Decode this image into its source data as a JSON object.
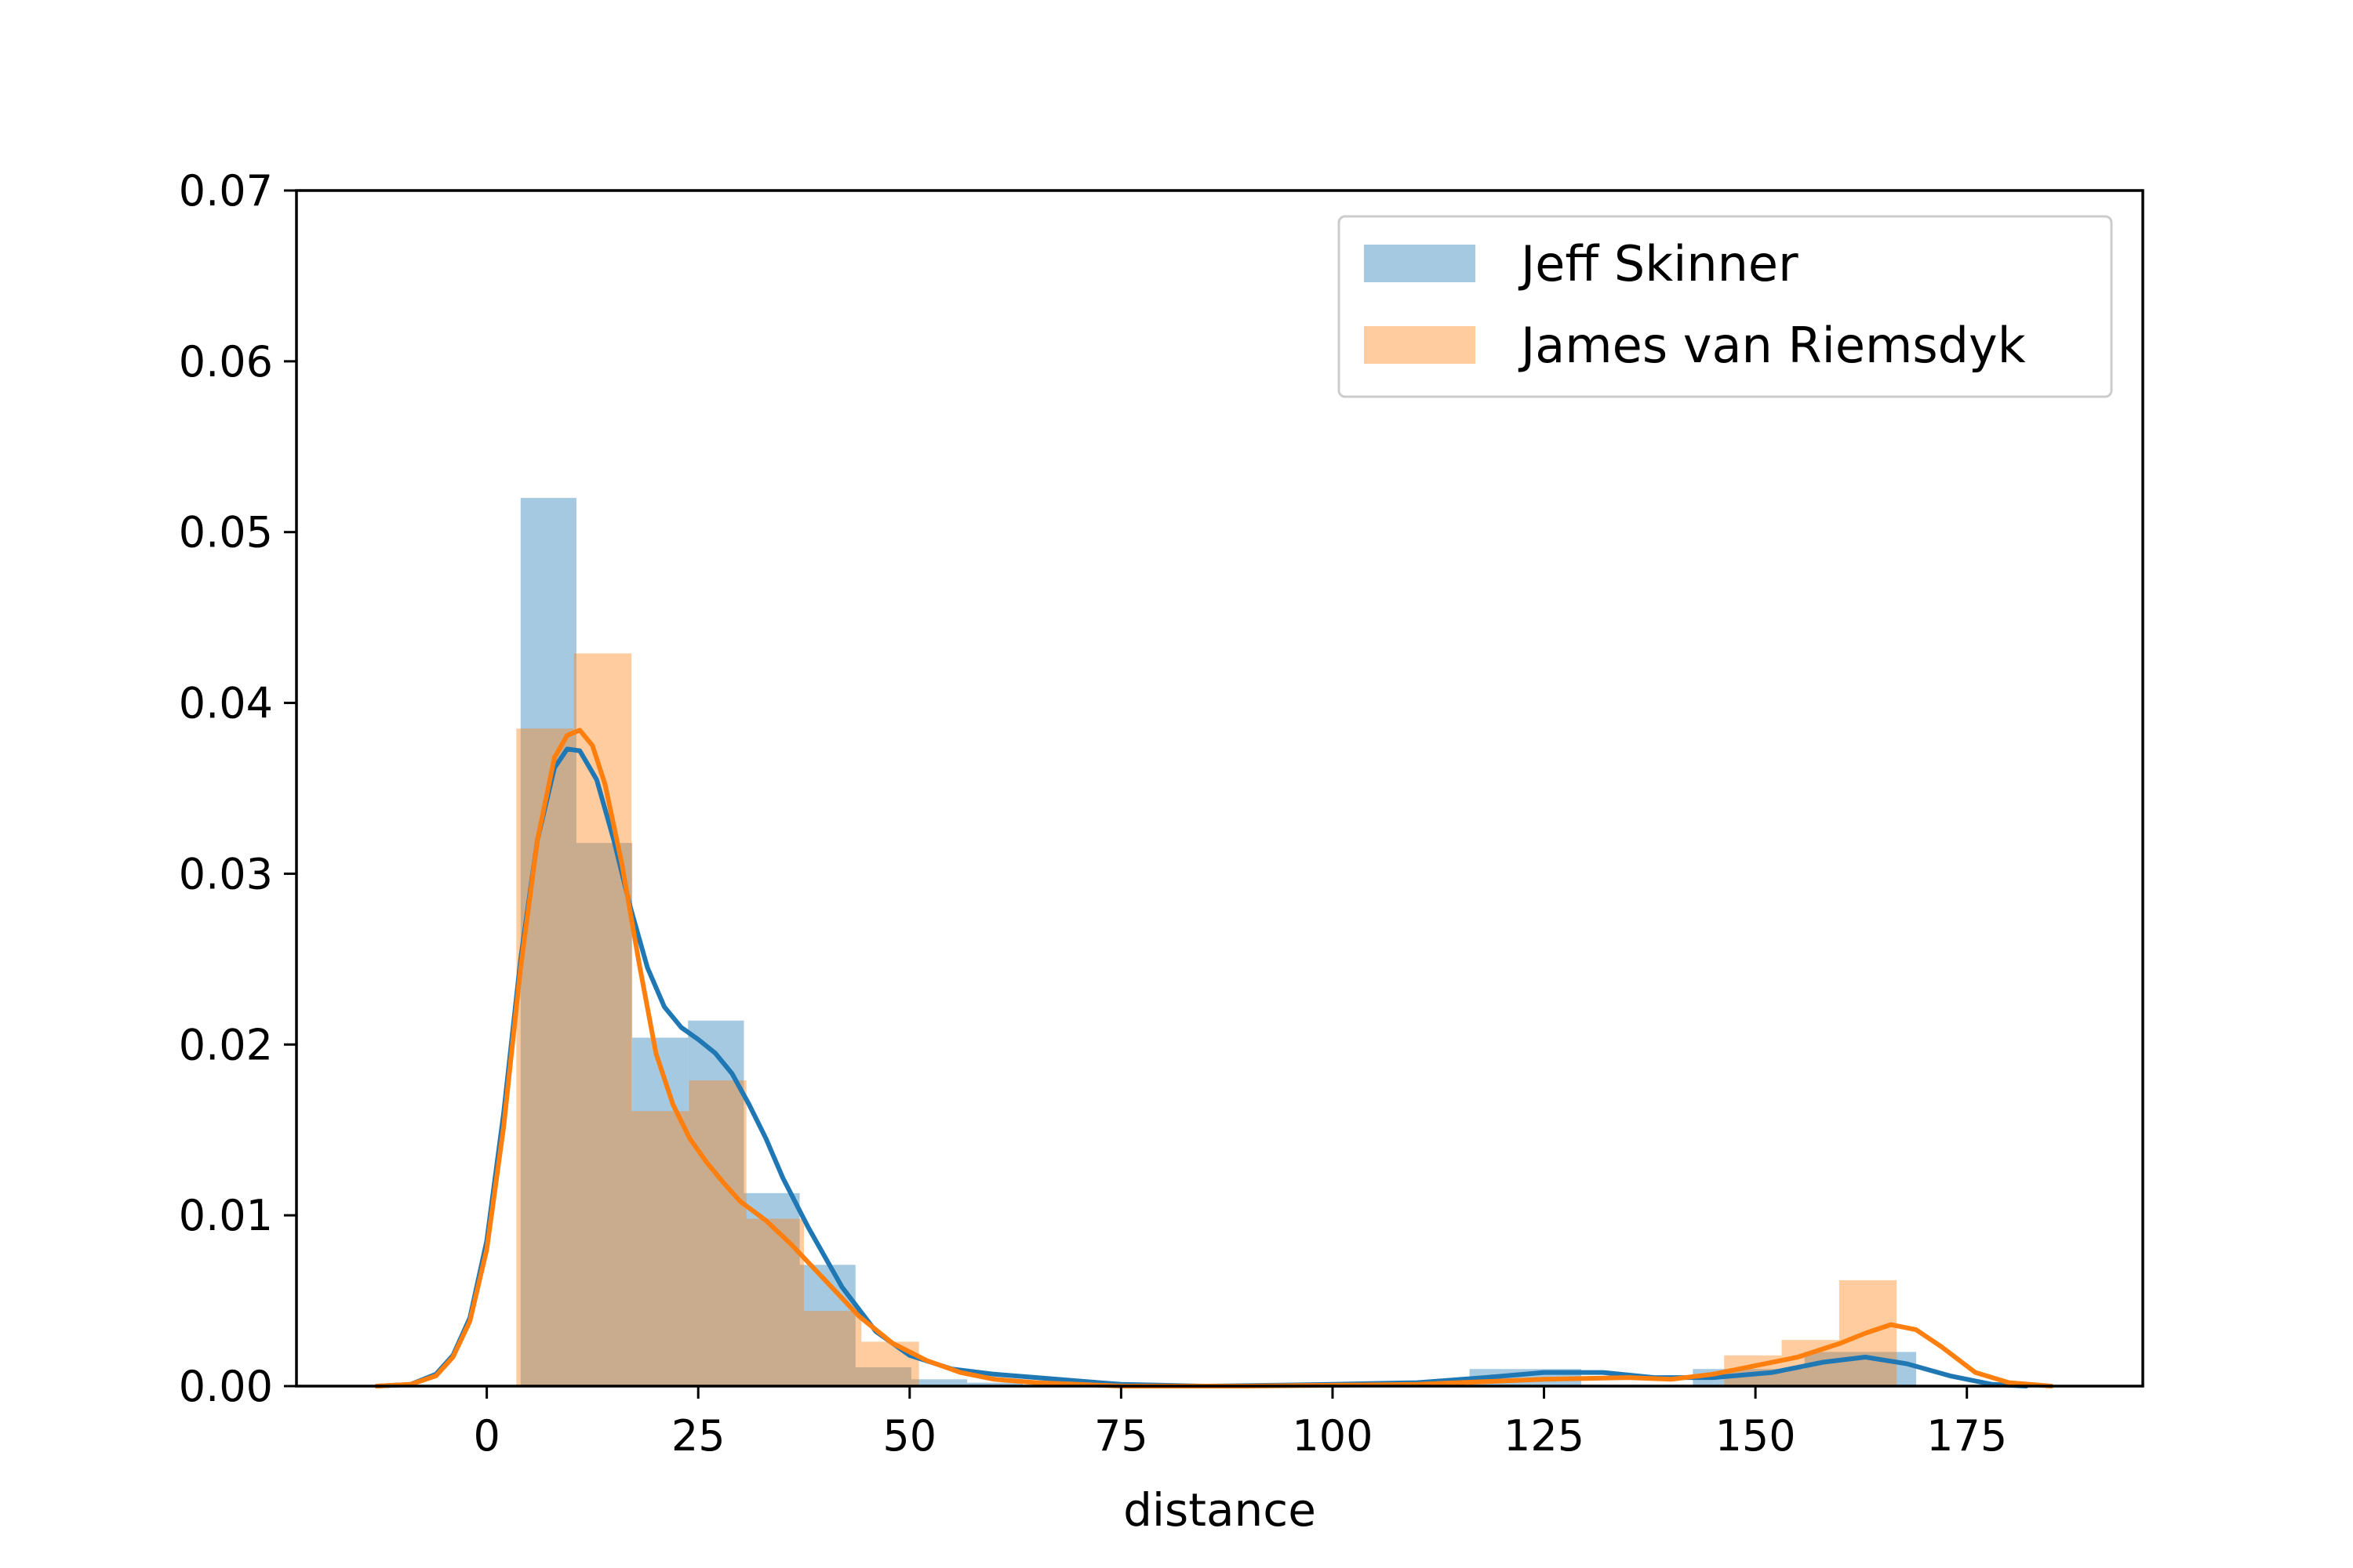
{
  "chart_data": {
    "type": "bar",
    "subtype": "histogram-with-kde",
    "title": "",
    "xlabel": "distance",
    "ylabel": "",
    "xlim": [
      -22.5,
      195.8
    ],
    "ylim": [
      0,
      0.07
    ],
    "xticks": [
      0,
      25,
      50,
      75,
      100,
      125,
      150,
      175
    ],
    "yticks": [
      0.0,
      0.01,
      0.02,
      0.03,
      0.04,
      0.05,
      0.06,
      0.07
    ],
    "ytick_labels": [
      "0.00",
      "0.01",
      "0.02",
      "0.03",
      "0.04",
      "0.05",
      "0.06",
      "0.07"
    ],
    "grid": false,
    "legend_position": "top-right",
    "series": [
      {
        "name": "Jeff Skinner",
        "color": "#1f77b4",
        "histogram": {
          "edges": [
            4.0,
            10.6,
            17.2,
            23.8,
            30.4,
            37.0,
            43.6,
            50.2,
            56.8,
            63.4,
            70.0,
            76.6,
            83.2,
            89.8,
            96.4,
            103.0,
            109.6,
            116.2,
            122.8,
            129.4,
            136.0,
            142.6,
            149.2,
            155.8,
            162.4,
            169.0
          ],
          "values": [
            0.052,
            0.0318,
            0.0204,
            0.0214,
            0.0113,
            0.0071,
            0.0011,
            0.0004,
            0.0002,
            0,
            0,
            0,
            0,
            0,
            0,
            0,
            0,
            0.001,
            0.001,
            0,
            0,
            0.001,
            0.001,
            0.002,
            0.002
          ]
        },
        "kde": {
          "x": [
            -13,
            -9,
            -6,
            -4,
            -2,
            0,
            2,
            4,
            6,
            8,
            9.5,
            11,
            13,
            15,
            17,
            19,
            21,
            23,
            25,
            27,
            29,
            31,
            33,
            35,
            38,
            42,
            46,
            50,
            55,
            60,
            65,
            70,
            75,
            85,
            100,
            110,
            118,
            125,
            132,
            138,
            145,
            152,
            158,
            163,
            168,
            173,
            178,
            182
          ],
          "y": [
            0.0,
            0.0001,
            0.0007,
            0.0018,
            0.004,
            0.0085,
            0.016,
            0.025,
            0.032,
            0.0362,
            0.0373,
            0.0372,
            0.0355,
            0.032,
            0.028,
            0.0245,
            0.0222,
            0.021,
            0.0203,
            0.0195,
            0.0183,
            0.0165,
            0.0145,
            0.0122,
            0.0093,
            0.0058,
            0.0032,
            0.0018,
            0.001,
            0.0007,
            0.0005,
            0.0003,
            0.0001,
            0.0,
            0.0001,
            0.0002,
            0.0005,
            0.0008,
            0.0008,
            0.0005,
            0.0005,
            0.0008,
            0.0014,
            0.0017,
            0.0013,
            0.0006,
            0.0001,
            0.0
          ]
        }
      },
      {
        "name": "James van Riemsdyk",
        "color": "#ff7f0e",
        "histogram": {
          "edges": [
            3.5,
            10.3,
            17.1,
            23.9,
            30.7,
            37.5,
            44.3,
            51.1,
            57.9,
            64.7,
            71.5,
            78.3,
            85.1,
            91.9,
            98.7,
            105.5,
            112.3,
            119.1,
            125.9,
            132.7,
            139.5,
            146.3,
            153.1,
            159.9,
            166.7,
            173.5
          ],
          "values": [
            0.0385,
            0.0429,
            0.0161,
            0.0179,
            0.0098,
            0.0044,
            0.0026,
            0.0,
            0,
            0,
            0,
            0,
            0,
            0,
            0,
            0,
            0,
            0,
            0,
            0,
            0,
            0.0018,
            0.0027,
            0.0062,
            0.0
          ]
        },
        "kde": {
          "x": [
            -13,
            -9,
            -6,
            -4,
            -2,
            0,
            2,
            4,
            6,
            8,
            9.5,
            11,
            12.5,
            14,
            16,
            18,
            20,
            22,
            24,
            26,
            28,
            30,
            33,
            36,
            40,
            44,
            48,
            52,
            56,
            60,
            65,
            70,
            75,
            90,
            110,
            125,
            135,
            140,
            145,
            150,
            155,
            160,
            163,
            166,
            169,
            172,
            176,
            180,
            185
          ],
          "y": [
            0.0,
            0.0001,
            0.0006,
            0.0017,
            0.0038,
            0.008,
            0.0152,
            0.0245,
            0.032,
            0.0368,
            0.0381,
            0.0384,
            0.0375,
            0.0352,
            0.0305,
            0.0248,
            0.0195,
            0.0165,
            0.0145,
            0.0131,
            0.0119,
            0.0108,
            0.0097,
            0.0083,
            0.0062,
            0.0041,
            0.0025,
            0.0015,
            0.0008,
            0.0004,
            0.0002,
            0.0001,
            0.0,
            0.0,
            0.0001,
            0.0004,
            0.0005,
            0.0004,
            0.0007,
            0.0012,
            0.0017,
            0.0025,
            0.0031,
            0.0036,
            0.0033,
            0.0023,
            0.0008,
            0.0002,
            0.0
          ]
        }
      }
    ]
  }
}
